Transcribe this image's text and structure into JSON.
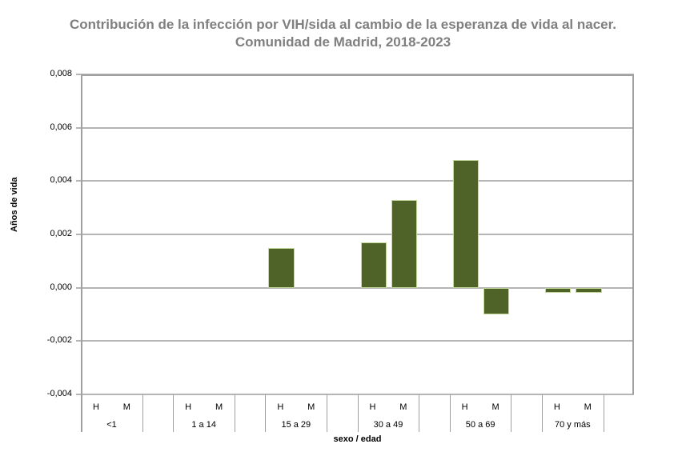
{
  "chart_data": {
    "type": "bar",
    "title": "Contribución de la infección por VIH/sida al cambio de la esperanza de vida al nacer.",
    "subtitle": "Comunidad de Madrid, 2018-2023",
    "xlabel": "sexo / edad",
    "ylabel": "Años de vida",
    "ylim": [
      -0.004,
      0.008
    ],
    "yticks": [
      "0,008",
      "0,006",
      "0,004",
      "0,002",
      "0,000",
      "-0,002",
      "-0,004"
    ],
    "grid": true,
    "legend": null,
    "groups": [
      "<1",
      "1 a 14",
      "15 a 29",
      "30 a 49",
      "50 a 69",
      "70 y más"
    ],
    "sexes": [
      "H",
      "M"
    ],
    "series": [
      {
        "name": "H",
        "values": [
          0,
          0,
          0.0015,
          0.0017,
          0.0048,
          -0.0002
        ]
      },
      {
        "name": "M",
        "values": [
          0,
          0,
          0,
          0.0033,
          -0.001,
          -0.0002
        ]
      }
    ],
    "bar_color": "#4f6228"
  }
}
